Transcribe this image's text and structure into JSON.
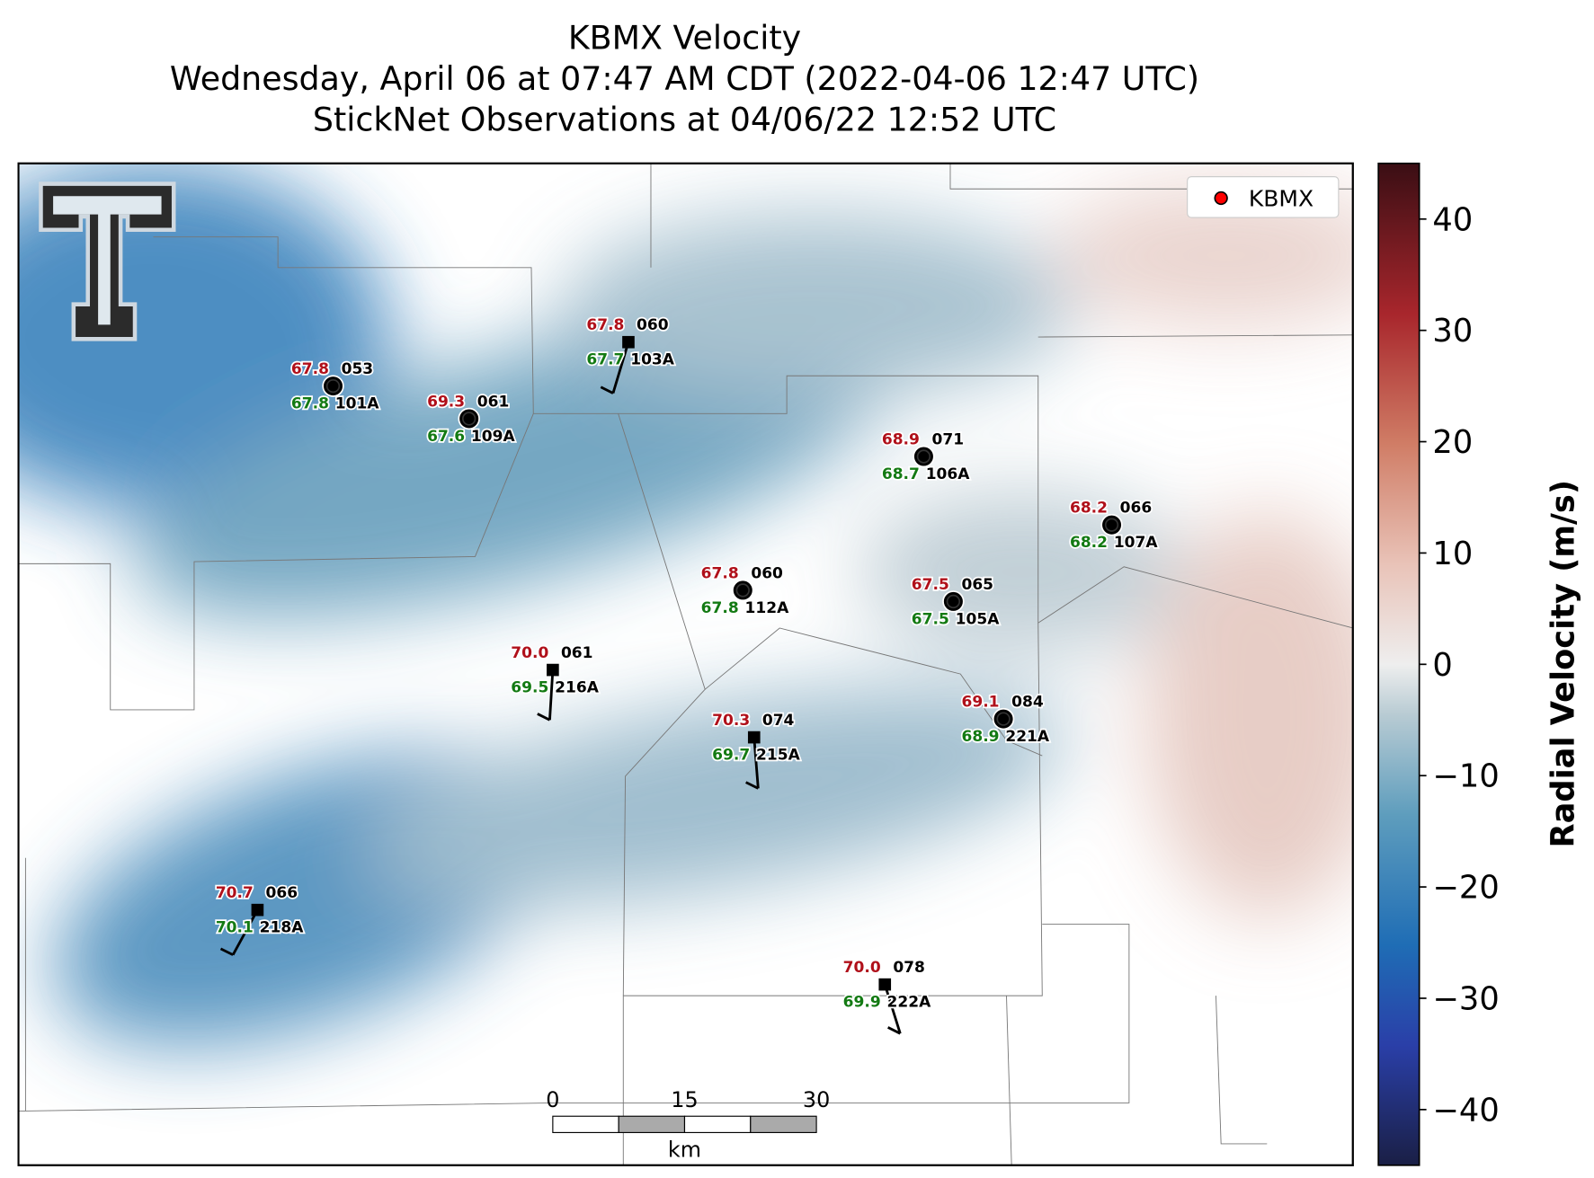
{
  "title": [
    "KBMX Velocity",
    "Wednesday, April 06 at 07:47 AM CDT (2022-04-06 12:47 UTC)",
    "StickNet Observations at 04/06/22 12:52 UTC"
  ],
  "legend": {
    "label": "KBMX",
    "color": "#ff0000"
  },
  "stations": [
    {
      "id": "101A",
      "temperature": "67.8",
      "dewpoint": "67.8",
      "code": "053"
    },
    {
      "id": "109A",
      "temperature": "69.3",
      "dewpoint": "67.6",
      "code": "061"
    },
    {
      "id": "103A",
      "temperature": "67.8",
      "dewpoint": "67.7",
      "code": "060"
    },
    {
      "id": "106A",
      "temperature": "68.9",
      "dewpoint": "68.7",
      "code": "071"
    },
    {
      "id": "107A",
      "temperature": "68.2",
      "dewpoint": "68.2",
      "code": "066"
    },
    {
      "id": "112A",
      "temperature": "67.8",
      "dewpoint": "67.8",
      "code": "060"
    },
    {
      "id": "105A",
      "temperature": "67.5",
      "dewpoint": "67.5",
      "code": "065"
    },
    {
      "id": "216A",
      "temperature": "70.0",
      "dewpoint": "69.5",
      "code": "061"
    },
    {
      "id": "221A",
      "temperature": "69.1",
      "dewpoint": "68.9",
      "code": "084"
    },
    {
      "id": "215A",
      "temperature": "70.3",
      "dewpoint": "69.7",
      "code": "074"
    },
    {
      "id": "218A",
      "temperature": "70.7",
      "dewpoint": "70.1",
      "code": "066"
    },
    {
      "id": "222A",
      "temperature": "70.0",
      "dewpoint": "69.9",
      "code": "078"
    }
  ],
  "colorbar": {
    "label": "Radial Velocity (m/s)",
    "lim": [
      -45,
      45
    ],
    "ticks": [
      40,
      30,
      20,
      10,
      0,
      {
        "value": -10,
        "label": "−10"
      },
      {
        "value": -20,
        "label": "−20"
      },
      {
        "value": -30,
        "label": "−30"
      },
      {
        "value": -40,
        "label": "−40"
      }
    ]
  },
  "scalebar": {
    "unit": "km",
    "lim": [
      0,
      30
    ],
    "ticks": [
      0,
      15,
      30
    ]
  }
}
